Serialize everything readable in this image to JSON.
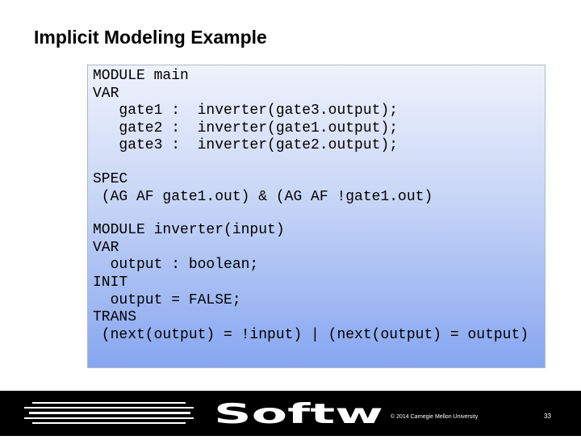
{
  "header": {
    "title": "Implicit Modeling Example"
  },
  "code": {
    "blocks": [
      [
        "MODULE main",
        "VAR",
        "   gate1 :  inverter(gate3.output);",
        "   gate2 :  inverter(gate1.output);",
        "   gate3 :  inverter(gate2.output);"
      ],
      [
        "SPEC",
        " (AG AF gate1.out) & (AG AF !gate1.out)"
      ],
      [
        "MODULE inverter(input)",
        "VAR",
        "  output : boolean;",
        "INIT",
        "  output = FALSE;",
        "TRANS",
        " (next(output) = !input) | (next(output) = output)"
      ]
    ]
  },
  "footer": {
    "logo": "Softw",
    "copyright": "© 2014 Carnegie Mellon University",
    "page": "33"
  }
}
